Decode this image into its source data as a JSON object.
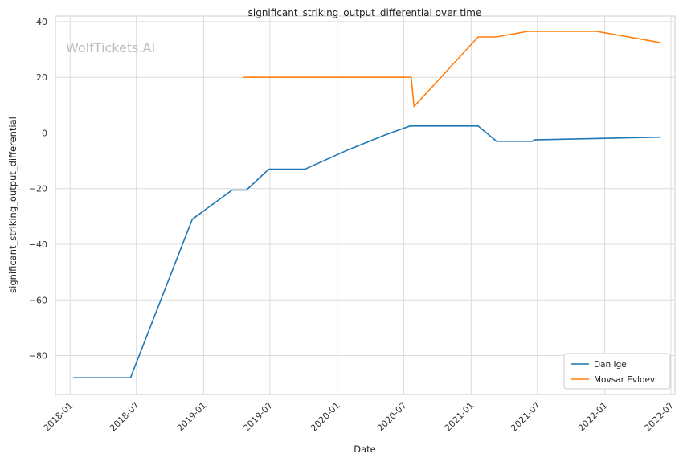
{
  "chart_data": {
    "type": "line",
    "title": "significant_striking_output_differential over time",
    "xlabel": "Date",
    "ylabel": "significant_striking_output_differential",
    "watermark": "WolfTickets.AI",
    "x_tick_labels": [
      "2018-01",
      "2018-07",
      "2019-01",
      "2019-07",
      "2020-01",
      "2020-07",
      "2021-01",
      "2021-07",
      "2022-01",
      "2022-07"
    ],
    "y_ticks": [
      40,
      20,
      0,
      -20,
      -40,
      -60,
      -80
    ],
    "y_tick_labels": [
      "40",
      "20",
      "0",
      "−20",
      "−40",
      "−60",
      "−80"
    ],
    "xlim": [
      "2017-11-22",
      "2022-07-12"
    ],
    "ylim": [
      -94,
      42
    ],
    "grid": true,
    "legend_position": "bottom-right",
    "series": [
      {
        "name": "Dan Ige",
        "color": "#1f77b4",
        "points": [
          [
            "2018-01-10",
            -88
          ],
          [
            "2018-06-15",
            -88
          ],
          [
            "2018-12-01",
            -31
          ],
          [
            "2019-03-20",
            -20.5
          ],
          [
            "2019-04-28",
            -20.5
          ],
          [
            "2019-06-28",
            -13
          ],
          [
            "2019-10-05",
            -13
          ],
          [
            "2020-02-01",
            -6
          ],
          [
            "2020-05-15",
            -0.5
          ],
          [
            "2020-07-18",
            2.5
          ],
          [
            "2021-01-20",
            2.5
          ],
          [
            "2021-03-11",
            -3
          ],
          [
            "2021-06-17",
            -3
          ],
          [
            "2021-06-22",
            -2.5
          ],
          [
            "2022-06-01",
            -1.5
          ]
        ]
      },
      {
        "name": "Movsar Evloev",
        "color": "#ff7f0e",
        "points": [
          [
            "2019-04-20",
            20
          ],
          [
            "2020-07-21",
            20
          ],
          [
            "2020-07-29",
            9.5
          ],
          [
            "2021-01-20",
            34.5
          ],
          [
            "2021-03-11",
            34.5
          ],
          [
            "2021-06-05",
            36.5
          ],
          [
            "2021-12-10",
            36.5
          ],
          [
            "2022-06-01",
            32.5
          ]
        ]
      }
    ]
  }
}
